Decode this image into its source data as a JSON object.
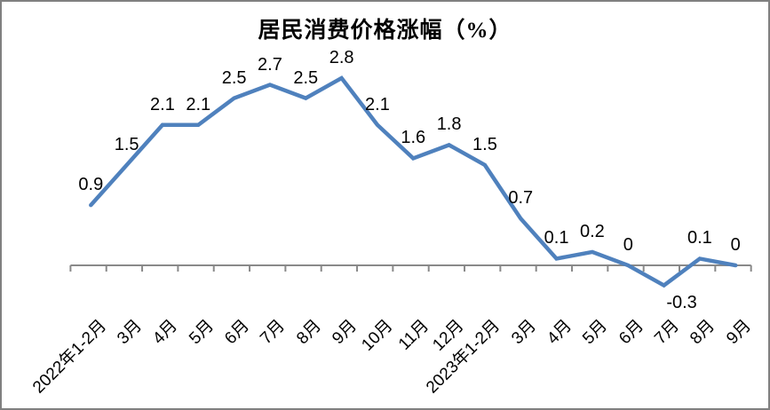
{
  "chart_data": {
    "type": "line",
    "title": "居民消费价格涨幅（%）",
    "categories": [
      "2022年1-2月",
      "3月",
      "4月",
      "5月",
      "6月",
      "7月",
      "8月",
      "9月",
      "10月",
      "11月",
      "12月",
      "2023年1-2月",
      "3月",
      "4月",
      "5月",
      "6月",
      "7月",
      "8月",
      "9月"
    ],
    "values": [
      0.9,
      1.5,
      2.1,
      2.1,
      2.5,
      2.7,
      2.5,
      2.8,
      2.1,
      1.6,
      1.8,
      1.5,
      0.7,
      0.1,
      0.2,
      0,
      -0.3,
      0.1,
      0
    ],
    "xlabel": "",
    "ylabel": "",
    "ylim": [
      -0.5,
      3.0
    ],
    "grid": false,
    "legend": "none",
    "data_labels_shown": true,
    "x_tick_rotation_deg": 45,
    "colors": {
      "line": "#4F81BD",
      "axis": "#898989",
      "label_text": "#000000",
      "frame_border": "#808080",
      "background": "#FFFFFF"
    }
  }
}
